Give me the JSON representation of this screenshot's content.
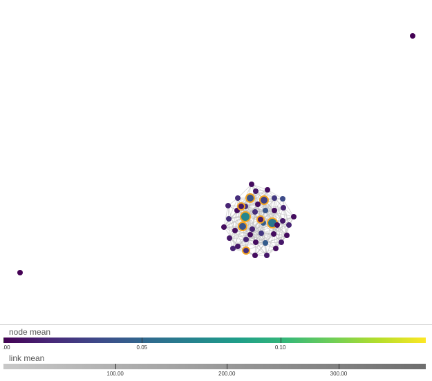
{
  "graph": {
    "nodes": [
      {
        "id": "iso1",
        "value": 0.0
      },
      {
        "id": "iso2",
        "value": 0.0
      },
      {
        "id": "n1",
        "value": 0.005
      },
      {
        "id": "n2",
        "value": 0.01
      },
      {
        "id": "n3",
        "value": 0.005
      },
      {
        "id": "n4",
        "value": 0.02
      },
      {
        "id": "n5",
        "value": 0.04,
        "highlight": true
      },
      {
        "id": "n6",
        "value": 0.03,
        "highlight": true
      },
      {
        "id": "n7",
        "value": 0.025
      },
      {
        "id": "n8",
        "value": 0.035
      },
      {
        "id": "n9",
        "value": 0.015
      },
      {
        "id": "n10",
        "value": 0.02
      },
      {
        "id": "n11",
        "value": 0.005
      },
      {
        "id": "n12",
        "value": 0.01
      },
      {
        "id": "n13",
        "value": 0.02
      },
      {
        "id": "n14",
        "value": 0.04
      },
      {
        "id": "n15",
        "value": 0.005
      },
      {
        "id": "n16",
        "value": 0.015
      },
      {
        "id": "n17",
        "value": 0.07,
        "highlight": true
      },
      {
        "id": "n18",
        "value": 0.06,
        "highlight": true
      },
      {
        "id": "n19",
        "value": 0.02
      },
      {
        "id": "n20",
        "value": 0.005
      },
      {
        "id": "n21",
        "value": 0.045
      },
      {
        "id": "n22",
        "value": 0.01
      },
      {
        "id": "n23",
        "value": 0.005
      },
      {
        "id": "n24",
        "value": 0.015
      },
      {
        "id": "n25",
        "value": 0.04,
        "highlight": true
      },
      {
        "id": "n26",
        "value": 0.005
      },
      {
        "id": "n27",
        "value": 0.015
      },
      {
        "id": "n28",
        "value": 0.025
      },
      {
        "id": "n29",
        "value": 0.005
      },
      {
        "id": "n30",
        "value": 0.01
      },
      {
        "id": "n31",
        "value": 0.015
      },
      {
        "id": "n32",
        "value": 0.005
      },
      {
        "id": "n33",
        "value": 0.02
      },
      {
        "id": "n34",
        "value": 0.01
      },
      {
        "id": "n35",
        "value": 0.005
      },
      {
        "id": "n36",
        "value": 0.045
      },
      {
        "id": "n37",
        "value": 0.01
      },
      {
        "id": "n38",
        "value": 0.02,
        "highlight": true
      },
      {
        "id": "n39",
        "value": 0.005
      },
      {
        "id": "n40",
        "value": 0.01
      },
      {
        "id": "n41",
        "value": 0.005
      },
      {
        "id": "n42",
        "value": 0.015
      },
      {
        "id": "n43",
        "value": 0.01,
        "highlight": true
      },
      {
        "id": "n44",
        "value": 0.005
      },
      {
        "id": "n45",
        "value": 0.01,
        "highlight": true
      },
      {
        "id": "n46",
        "value": 0.005
      },
      {
        "id": "n47",
        "value": 0.005
      }
    ]
  },
  "legend": {
    "node_title": "node mean",
    "link_title": "link mean",
    "node_ticks": [
      {
        "label": ".00",
        "value": 0.0
      },
      {
        "label": "0.05",
        "value": 0.05
      },
      {
        "label": "0.10",
        "value": 0.1
      }
    ],
    "node_max": 0.1525,
    "link_ticks": [
      {
        "label": "100.00",
        "value": 100
      },
      {
        "label": "200.00",
        "value": 200
      },
      {
        "label": "300.00",
        "value": 300
      }
    ],
    "link_min": 0,
    "link_max": 378
  },
  "colors": {
    "highlight_stroke": "#f5a623",
    "link_color": "#bbbbbb"
  }
}
